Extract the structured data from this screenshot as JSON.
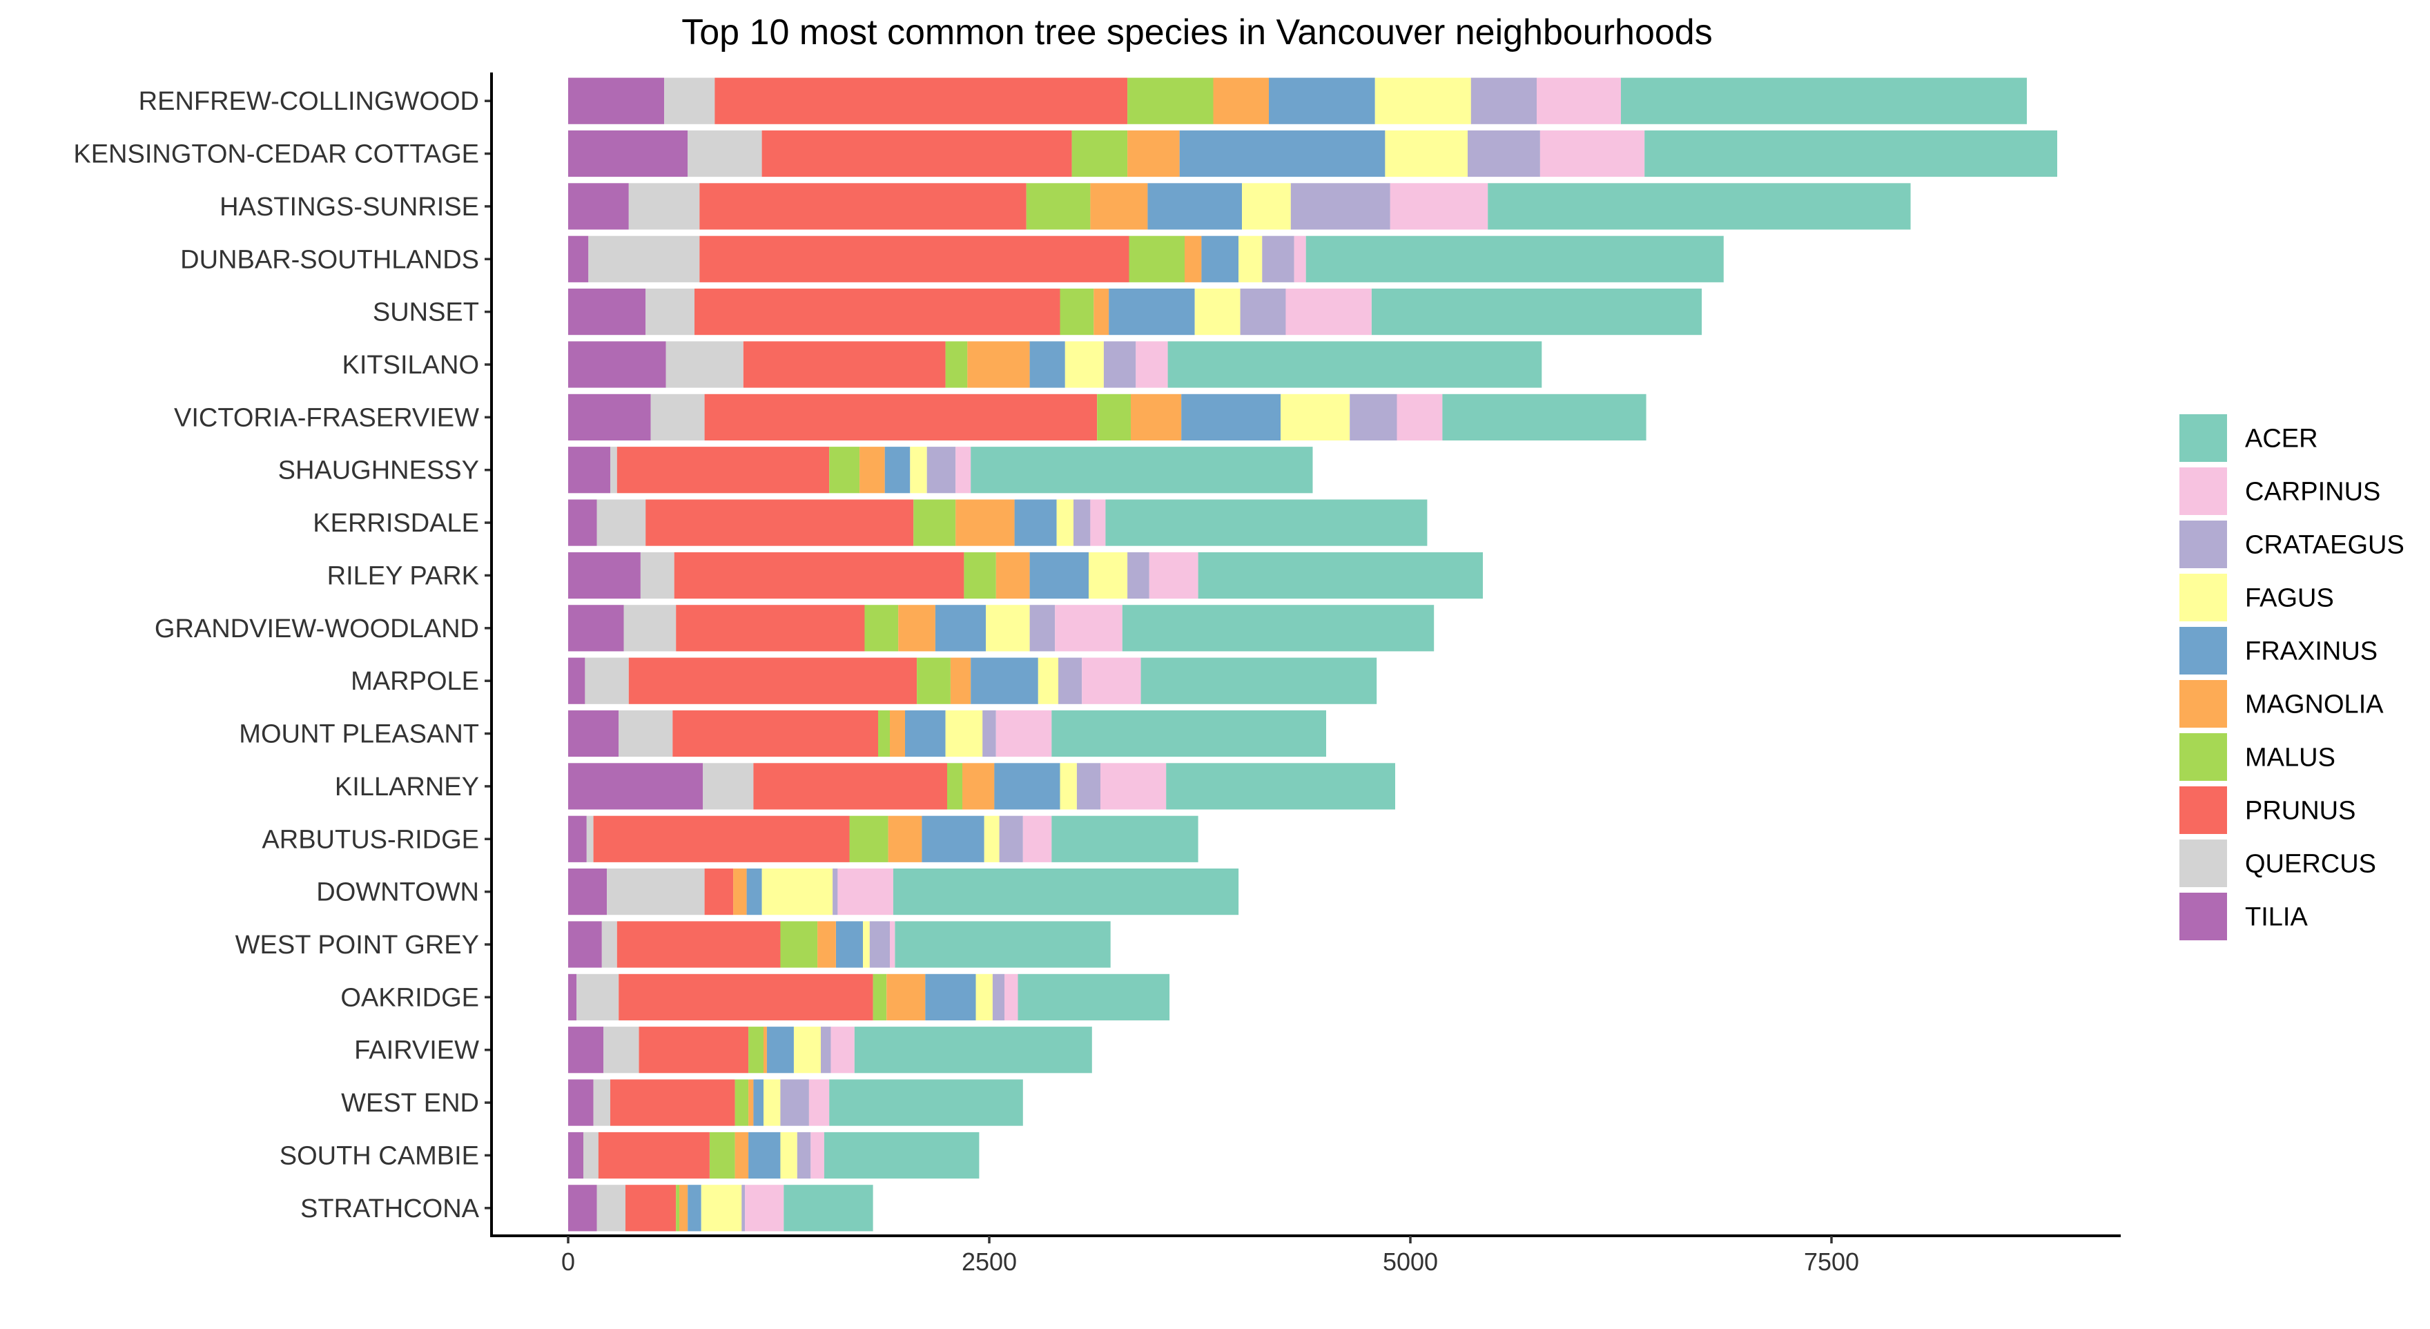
{
  "chart_data": {
    "type": "bar",
    "orientation": "horizontal",
    "stacked": true,
    "title": "Top 10 most common tree species in Vancouver neighbourhoods",
    "xlabel": "",
    "ylabel": "",
    "xlim": [
      0,
      9200
    ],
    "xticks": [
      0,
      2500,
      5000,
      7500
    ],
    "grid": false,
    "legend_position": "right",
    "stack_order": [
      "TILIA",
      "QUERCUS",
      "PRUNUS",
      "MALUS",
      "MAGNOLIA",
      "FRAXINUS",
      "FAGUS",
      "CRATAEGUS",
      "CARPINUS",
      "ACER"
    ],
    "legend_order": [
      "ACER",
      "CARPINUS",
      "CRATAEGUS",
      "FAGUS",
      "FRAXINUS",
      "MAGNOLIA",
      "MALUS",
      "PRUNUS",
      "QUERCUS",
      "TILIA"
    ],
    "colors": {
      "ACER": "#7fcdbb",
      "CARPINUS": "#f7c2e0",
      "CRATAEGUS": "#b2abd2",
      "FAGUS": "#ffff99",
      "FRAXINUS": "#6fa3cc",
      "MAGNOLIA": "#fdab55",
      "MALUS": "#a6d854",
      "PRUNUS": "#f8695f",
      "QUERCUS": "#d3d3d3",
      "TILIA": "#b06ab3"
    },
    "categories": [
      "RENFREW-COLLINGWOOD",
      "KENSINGTON-CEDAR COTTAGE",
      "HASTINGS-SUNRISE",
      "DUNBAR-SOUTHLANDS",
      "SUNSET",
      "KITSILANO",
      "VICTORIA-FRASERVIEW",
      "SHAUGHNESSY",
      "KERRISDALE",
      "RILEY PARK",
      "GRANDVIEW-WOODLAND",
      "MARPOLE",
      "MOUNT PLEASANT",
      "KILLARNEY",
      "ARBUTUS-RIDGE",
      "DOWNTOWN",
      "WEST POINT GREY",
      "OAKRIDGE",
      "FAIRVIEW",
      "WEST END",
      "SOUTH CAMBIE",
      "STRATHCONA"
    ],
    "series": [
      {
        "name": "TILIA",
        "values": [
          570,
          710,
          360,
          120,
          460,
          580,
          490,
          250,
          170,
          430,
          330,
          100,
          300,
          800,
          110,
          230,
          200,
          50,
          210,
          150,
          90,
          170
        ]
      },
      {
        "name": "QUERCUS",
        "values": [
          300,
          440,
          420,
          660,
          290,
          460,
          320,
          40,
          290,
          200,
          310,
          260,
          320,
          300,
          40,
          580,
          90,
          250,
          210,
          100,
          90,
          170
        ]
      },
      {
        "name": "PRUNUS",
        "values": [
          2450,
          1840,
          1940,
          2550,
          2170,
          1200,
          2330,
          1260,
          1590,
          1720,
          1120,
          1710,
          1220,
          1150,
          1520,
          170,
          970,
          1510,
          650,
          740,
          660,
          300
        ]
      },
      {
        "name": "MALUS",
        "values": [
          510,
          330,
          380,
          330,
          200,
          130,
          200,
          180,
          250,
          190,
          200,
          200,
          70,
          90,
          230,
          0,
          220,
          80,
          90,
          80,
          150,
          20
        ]
      },
      {
        "name": "MAGNOLIA",
        "values": [
          330,
          310,
          340,
          100,
          90,
          370,
          300,
          150,
          350,
          200,
          220,
          120,
          90,
          190,
          200,
          80,
          110,
          230,
          20,
          30,
          80,
          50
        ]
      },
      {
        "name": "FRAXINUS",
        "values": [
          630,
          1220,
          560,
          220,
          510,
          210,
          590,
          150,
          250,
          350,
          300,
          400,
          240,
          390,
          370,
          90,
          160,
          300,
          160,
          60,
          190,
          80
        ]
      },
      {
        "name": "FAGUS",
        "values": [
          570,
          490,
          290,
          140,
          270,
          230,
          410,
          100,
          100,
          230,
          260,
          120,
          220,
          100,
          90,
          420,
          40,
          100,
          160,
          100,
          100,
          240
        ]
      },
      {
        "name": "CRATAEGUS",
        "values": [
          390,
          430,
          590,
          190,
          270,
          190,
          280,
          170,
          100,
          130,
          150,
          140,
          80,
          140,
          140,
          30,
          120,
          70,
          60,
          170,
          80,
          20
        ]
      },
      {
        "name": "CARPINUS",
        "values": [
          500,
          620,
          580,
          70,
          510,
          190,
          270,
          90,
          90,
          290,
          400,
          350,
          330,
          390,
          170,
          330,
          30,
          80,
          140,
          120,
          80,
          230
        ]
      },
      {
        "name": "ACER",
        "values": [
          2410,
          2450,
          2510,
          2480,
          1960,
          2220,
          1210,
          2030,
          1910,
          1690,
          1850,
          1400,
          1630,
          1360,
          870,
          2050,
          1280,
          900,
          1410,
          1150,
          920,
          530
        ]
      }
    ]
  }
}
